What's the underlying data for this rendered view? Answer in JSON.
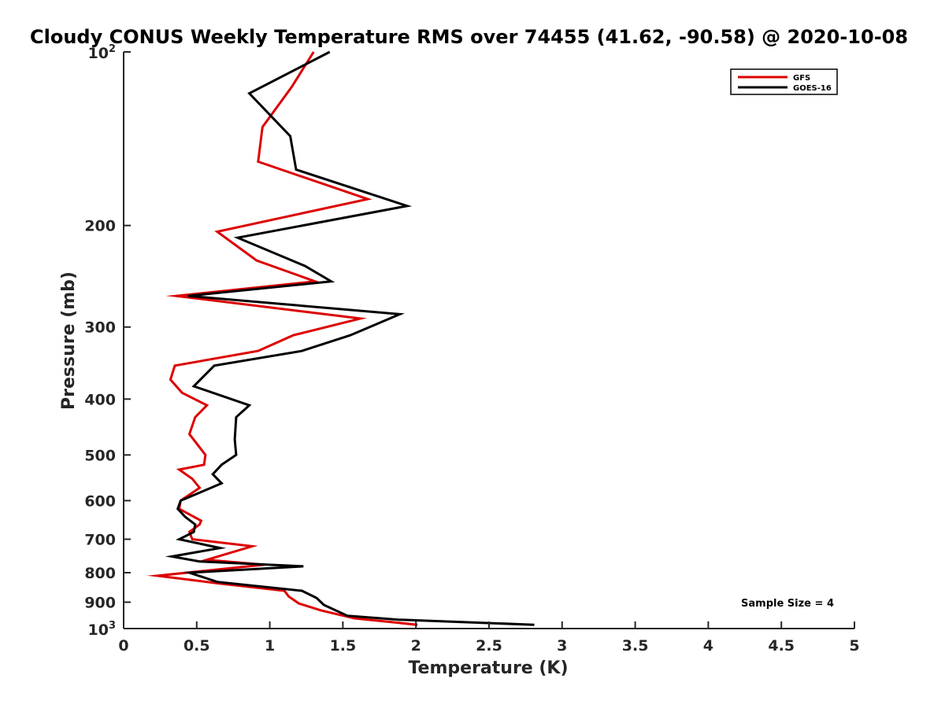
{
  "chart_data": {
    "type": "line",
    "title": "Cloudy CONUS Weekly Temperature RMS over 74455 (41.62, -90.58) @ 2020-10-08",
    "xlabel": "Temperature (K)",
    "ylabel": "Pressure (mb)",
    "xlim": [
      0,
      5
    ],
    "ylim": [
      100,
      1000
    ],
    "y_scale": "log",
    "y_reversed": true,
    "x_ticks": [
      "0",
      "0.5",
      "1",
      "1.5",
      "2",
      "2.5",
      "3",
      "3.5",
      "4",
      "4.5",
      "5"
    ],
    "y_ticks": [
      {
        "value": 100,
        "base": "10",
        "exp": "2"
      },
      {
        "value": 200,
        "label": "200"
      },
      {
        "value": 300,
        "label": "300"
      },
      {
        "value": 400,
        "label": "400"
      },
      {
        "value": 500,
        "label": "500"
      },
      {
        "value": 600,
        "label": "600"
      },
      {
        "value": 700,
        "label": "700"
      },
      {
        "value": 800,
        "label": "800"
      },
      {
        "value": 900,
        "label": "900"
      },
      {
        "value": 1000,
        "base": "10",
        "exp": "3"
      }
    ],
    "grid": false,
    "legend_position": "top-right",
    "annotation": "Sample Size = 4",
    "series": [
      {
        "name": "GFS",
        "color": "#dd0000",
        "points": [
          [
            1.3,
            100
          ],
          [
            1.15,
            115
          ],
          [
            0.95,
            135
          ],
          [
            0.92,
            155
          ],
          [
            1.67,
            180
          ],
          [
            0.64,
            205
          ],
          [
            0.91,
            230
          ],
          [
            1.31,
            250
          ],
          [
            0.36,
            265
          ],
          [
            1.62,
            290
          ],
          [
            1.16,
            310
          ],
          [
            0.92,
            330
          ],
          [
            0.35,
            350
          ],
          [
            0.32,
            370
          ],
          [
            0.4,
            390
          ],
          [
            0.57,
            410
          ],
          [
            0.49,
            430
          ],
          [
            0.45,
            460
          ],
          [
            0.56,
            500
          ],
          [
            0.55,
            520
          ],
          [
            0.38,
            530
          ],
          [
            0.47,
            550
          ],
          [
            0.52,
            570
          ],
          [
            0.39,
            600
          ],
          [
            0.38,
            620
          ],
          [
            0.53,
            650
          ],
          [
            0.52,
            660
          ],
          [
            0.45,
            680
          ],
          [
            0.47,
            700
          ],
          [
            0.88,
            720
          ],
          [
            0.57,
            760
          ],
          [
            0.96,
            775
          ],
          [
            0.23,
            810
          ],
          [
            0.65,
            835
          ],
          [
            1.1,
            860
          ],
          [
            1.13,
            880
          ],
          [
            1.2,
            905
          ],
          [
            1.35,
            930
          ],
          [
            1.58,
            960
          ],
          [
            2.01,
            985
          ]
        ]
      },
      {
        "name": "GOES-16",
        "color": "#000000",
        "points": [
          [
            1.41,
            100
          ],
          [
            0.86,
            118
          ],
          [
            1.14,
            140
          ],
          [
            1.18,
            160
          ],
          [
            1.94,
            185
          ],
          [
            0.78,
            210
          ],
          [
            1.24,
            235
          ],
          [
            1.42,
            250
          ],
          [
            0.44,
            265
          ],
          [
            1.89,
            285
          ],
          [
            1.55,
            310
          ],
          [
            1.22,
            330
          ],
          [
            0.62,
            350
          ],
          [
            0.48,
            380
          ],
          [
            0.86,
            410
          ],
          [
            0.77,
            430
          ],
          [
            0.76,
            470
          ],
          [
            0.77,
            500
          ],
          [
            0.67,
            520
          ],
          [
            0.61,
            540
          ],
          [
            0.67,
            560
          ],
          [
            0.39,
            600
          ],
          [
            0.37,
            620
          ],
          [
            0.42,
            640
          ],
          [
            0.49,
            660
          ],
          [
            0.48,
            680
          ],
          [
            0.38,
            700
          ],
          [
            0.66,
            725
          ],
          [
            0.33,
            750
          ],
          [
            0.52,
            765
          ],
          [
            1.23,
            780
          ],
          [
            0.45,
            800
          ],
          [
            0.64,
            830
          ],
          [
            1.22,
            860
          ],
          [
            1.32,
            885
          ],
          [
            1.37,
            910
          ],
          [
            1.53,
            950
          ],
          [
            1.88,
            965
          ],
          [
            2.81,
            985
          ]
        ]
      }
    ]
  }
}
